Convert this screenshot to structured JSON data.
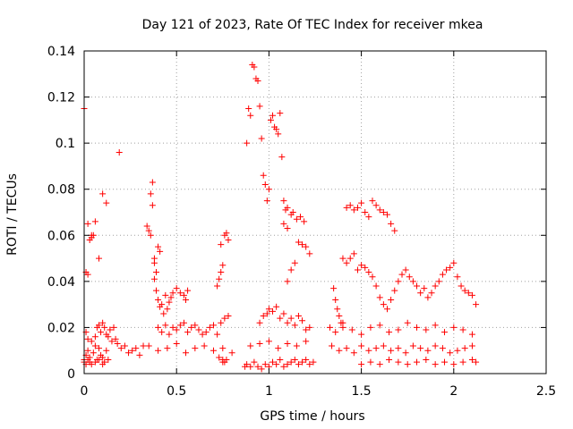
{
  "chart_data": {
    "type": "scatter",
    "title": "Day 121 of 2023, Rate Of TEC Index for receiver mkea",
    "xlabel": "GPS time / hours",
    "ylabel": "ROTI / TECUs",
    "xlim": [
      0,
      2.5
    ],
    "ylim": [
      0,
      0.14
    ],
    "xticks": [
      0,
      0.5,
      1,
      1.5,
      2,
      2.5
    ],
    "xtick_labels": [
      "0",
      "0.5",
      "1",
      "1.5",
      "2",
      "2.5"
    ],
    "yticks": [
      0,
      0.02,
      0.04,
      0.06,
      0.08,
      0.1,
      0.12,
      0.14
    ],
    "ytick_labels": [
      "0",
      "0.02",
      "0.04",
      "0.06",
      "0.08",
      "0.1",
      "0.12",
      "0.14"
    ],
    "grid": true,
    "marker": "+",
    "series": [
      {
        "name": "mkea",
        "color": "#ff0000",
        "x": [
          0.0,
          0.01,
          0.02,
          0.03,
          0.05,
          0.06,
          0.07,
          0.08,
          0.09,
          0.1,
          0.12,
          0.0,
          0.01,
          0.02,
          0.03,
          0.04,
          0.06,
          0.08,
          0.1,
          0.11,
          0.13,
          0.0,
          0.02,
          0.04,
          0.06,
          0.08,
          0.1,
          0.12,
          0.01,
          0.02,
          0.03,
          0.04,
          0.05,
          0.01,
          0.02,
          0.04,
          0.06,
          0.07,
          0.08,
          0.09,
          0.1,
          0.11,
          0.12,
          0.13,
          0.14,
          0.15,
          0.16,
          0.17,
          0.18,
          0.19,
          0.2,
          0.22,
          0.24,
          0.26,
          0.28,
          0.3,
          0.32,
          0.34,
          0.35,
          0.36,
          0.37,
          0.38,
          0.38,
          0.39,
          0.4,
          0.41,
          0.36,
          0.37,
          0.38,
          0.39,
          0.4,
          0.41,
          0.42,
          0.43,
          0.44,
          0.45,
          0.46,
          0.47,
          0.48,
          0.5,
          0.52,
          0.54,
          0.55,
          0.56,
          0.4,
          0.42,
          0.44,
          0.46,
          0.48,
          0.5,
          0.52,
          0.54,
          0.56,
          0.58,
          0.6,
          0.62,
          0.64,
          0.66,
          0.68,
          0.7,
          0.72,
          0.74,
          0.76,
          0.78,
          0.35,
          0.4,
          0.45,
          0.5,
          0.55,
          0.6,
          0.65,
          0.7,
          0.75,
          0.8,
          0.72,
          0.73,
          0.74,
          0.75,
          0.76,
          0.77,
          0.78,
          0.74,
          0.75,
          0.76,
          0.73,
          0.75,
          0.77,
          0.88,
          0.89,
          0.9,
          0.91,
          0.92,
          0.93,
          0.94,
          0.95,
          0.96,
          0.97,
          0.98,
          0.99,
          1.0,
          1.01,
          1.02,
          1.03,
          1.04,
          1.05,
          1.06,
          1.07,
          1.08,
          1.09,
          1.1,
          0.87,
          0.88,
          0.9,
          0.92,
          0.94,
          0.96,
          0.98,
          1.0,
          1.02,
          1.04,
          1.06,
          1.08,
          1.1,
          1.12,
          1.14,
          1.16,
          1.18,
          1.2,
          1.22,
          1.24,
          0.95,
          0.97,
          0.99,
          1.0,
          1.02,
          1.04,
          1.06,
          1.08,
          1.1,
          1.12,
          1.14,
          1.16,
          1.18,
          1.2,
          1.22,
          0.9,
          0.95,
          1.0,
          1.05,
          1.1,
          1.15,
          1.2,
          1.1,
          1.12,
          1.14,
          1.16,
          1.18,
          1.2,
          1.22,
          1.08,
          1.1,
          1.12,
          1.13,
          1.15,
          1.17,
          1.19,
          1.35,
          1.36,
          1.37,
          1.38,
          1.39,
          1.4,
          1.42,
          1.44,
          1.46,
          1.48,
          1.5,
          1.52,
          1.54,
          1.56,
          1.58,
          1.6,
          1.62,
          1.64,
          1.66,
          1.68,
          1.4,
          1.42,
          1.44,
          1.46,
          1.48,
          1.5,
          1.52,
          1.54,
          1.56,
          1.58,
          1.6,
          1.62,
          1.64,
          1.66,
          1.68,
          1.7,
          1.72,
          1.74,
          1.76,
          1.78,
          1.8,
          1.82,
          1.84,
          1.86,
          1.88,
          1.9,
          1.92,
          1.94,
          1.96,
          1.98,
          2.0,
          2.02,
          2.04,
          2.06,
          2.08,
          2.1,
          2.12,
          1.33,
          1.36,
          1.4,
          1.45,
          1.5,
          1.55,
          1.6,
          1.65,
          1.7,
          1.75,
          1.8,
          1.85,
          1.9,
          1.95,
          2.0,
          2.05,
          2.1,
          1.34,
          1.38,
          1.42,
          1.46,
          1.5,
          1.54,
          1.58,
          1.62,
          1.66,
          1.7,
          1.74,
          1.78,
          1.82,
          1.86,
          1.9,
          1.94,
          1.98,
          2.02,
          2.06,
          2.1,
          1.5,
          1.55,
          1.6,
          1.65,
          1.7,
          1.75,
          1.8,
          1.85,
          1.9,
          1.95,
          2.0,
          2.05,
          2.1,
          2.12
        ],
        "y": [
          0.006,
          0.008,
          0.01,
          0.007,
          0.009,
          0.012,
          0.006,
          0.011,
          0.008,
          0.007,
          0.01,
          0.005,
          0.004,
          0.006,
          0.005,
          0.004,
          0.005,
          0.006,
          0.004,
          0.005,
          0.006,
          0.115,
          0.065,
          0.06,
          0.066,
          0.05,
          0.078,
          0.074,
          0.044,
          0.043,
          0.058,
          0.059,
          0.06,
          0.018,
          0.015,
          0.014,
          0.016,
          0.02,
          0.021,
          0.018,
          0.022,
          0.02,
          0.017,
          0.016,
          0.019,
          0.014,
          0.02,
          0.015,
          0.013,
          0.096,
          0.011,
          0.012,
          0.009,
          0.01,
          0.011,
          0.008,
          0.012,
          0.064,
          0.062,
          0.078,
          0.083,
          0.048,
          0.05,
          0.044,
          0.055,
          0.053,
          0.06,
          0.073,
          0.041,
          0.036,
          0.032,
          0.029,
          0.03,
          0.026,
          0.034,
          0.028,
          0.031,
          0.033,
          0.035,
          0.037,
          0.035,
          0.034,
          0.032,
          0.036,
          0.02,
          0.018,
          0.021,
          0.017,
          0.02,
          0.019,
          0.021,
          0.022,
          0.018,
          0.02,
          0.021,
          0.019,
          0.017,
          0.018,
          0.02,
          0.021,
          0.017,
          0.022,
          0.024,
          0.025,
          0.012,
          0.01,
          0.011,
          0.013,
          0.009,
          0.011,
          0.012,
          0.01,
          0.011,
          0.009,
          0.038,
          0.041,
          0.044,
          0.047,
          0.06,
          0.061,
          0.058,
          0.056,
          0.006,
          0.005,
          0.007,
          0.005,
          0.006,
          0.1,
          0.115,
          0.112,
          0.134,
          0.133,
          0.128,
          0.127,
          0.116,
          0.102,
          0.086,
          0.082,
          0.075,
          0.08,
          0.11,
          0.112,
          0.107,
          0.106,
          0.104,
          0.113,
          0.094,
          0.075,
          0.071,
          0.072,
          0.003,
          0.004,
          0.003,
          0.005,
          0.003,
          0.002,
          0.004,
          0.003,
          0.005,
          0.004,
          0.006,
          0.003,
          0.004,
          0.005,
          0.006,
          0.004,
          0.005,
          0.006,
          0.004,
          0.005,
          0.022,
          0.025,
          0.026,
          0.028,
          0.027,
          0.029,
          0.024,
          0.026,
          0.022,
          0.024,
          0.021,
          0.025,
          0.023,
          0.019,
          0.02,
          0.012,
          0.013,
          0.014,
          0.011,
          0.013,
          0.012,
          0.014,
          0.04,
          0.045,
          0.048,
          0.057,
          0.056,
          0.055,
          0.052,
          0.065,
          0.063,
          0.069,
          0.07,
          0.067,
          0.068,
          0.066,
          0.037,
          0.032,
          0.028,
          0.025,
          0.022,
          0.02,
          0.072,
          0.073,
          0.071,
          0.072,
          0.074,
          0.07,
          0.068,
          0.075,
          0.073,
          0.071,
          0.07,
          0.069,
          0.065,
          0.062,
          0.05,
          0.048,
          0.05,
          0.052,
          0.045,
          0.047,
          0.046,
          0.044,
          0.042,
          0.038,
          0.033,
          0.03,
          0.028,
          0.032,
          0.036,
          0.04,
          0.043,
          0.045,
          0.042,
          0.04,
          0.038,
          0.035,
          0.037,
          0.033,
          0.035,
          0.038,
          0.04,
          0.043,
          0.045,
          0.046,
          0.048,
          0.042,
          0.038,
          0.036,
          0.035,
          0.034,
          0.03,
          0.02,
          0.018,
          0.022,
          0.019,
          0.017,
          0.02,
          0.021,
          0.018,
          0.019,
          0.022,
          0.02,
          0.019,
          0.021,
          0.018,
          0.02,
          0.019,
          0.017,
          0.012,
          0.01,
          0.011,
          0.009,
          0.012,
          0.01,
          0.011,
          0.012,
          0.01,
          0.011,
          0.009,
          0.012,
          0.011,
          0.01,
          0.012,
          0.011,
          0.009,
          0.01,
          0.011,
          0.012,
          0.004,
          0.005,
          0.004,
          0.006,
          0.005,
          0.004,
          0.005,
          0.006,
          0.004,
          0.005,
          0.004,
          0.005,
          0.006,
          0.005
        ]
      }
    ]
  }
}
